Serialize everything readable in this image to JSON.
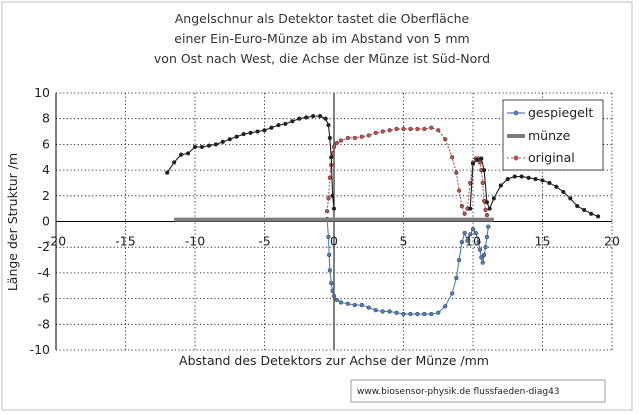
{
  "chart_data": {
    "type": "line",
    "title_lines": [
      "Angelschnur als Detektor tastet die Oberfläche",
      "einer  Ein-Euro-Münze ab im Abstand von 5 mm",
      "von Ost nach West, die Achse der Münze ist Süd-Nord"
    ],
    "xlabel": "Abstand des Detektors zur Achse der Münze /mm",
    "ylabel": "Länge der Struktur /m",
    "xlim": [
      -20,
      20
    ],
    "ylim": [
      -10,
      10
    ],
    "x_ticks": [
      -20,
      -15,
      -10,
      -5,
      0,
      5,
      10,
      15,
      20
    ],
    "y_ticks": [
      10,
      8,
      6,
      4,
      2,
      0,
      -2,
      -4,
      -6,
      -8,
      -10
    ],
    "grid": true,
    "legend_position": "right",
    "source_note": "www.biosensor-physik.de  flussfaeden-diag43",
    "colors": {
      "gespiegelt": "#4f81bd",
      "münze": "#7f7f7f",
      "original": "#c0504d",
      "left_segment": "#1f1f1f",
      "right_tail": "#1f1f1f"
    },
    "series": [
      {
        "name": "gespiegelt",
        "color": "#4f81bd",
        "marker": "circle",
        "points": [
          [
            -0.5,
            0.2
          ],
          [
            -0.4,
            -1.2
          ],
          [
            -0.35,
            -2.6
          ],
          [
            -0.3,
            -3.8
          ],
          [
            -0.2,
            -4.8
          ],
          [
            -0.1,
            -5.4
          ],
          [
            0.0,
            -5.8
          ],
          [
            0.2,
            -6.1
          ],
          [
            0.5,
            -6.3
          ],
          [
            1.0,
            -6.4
          ],
          [
            1.5,
            -6.5
          ],
          [
            2.0,
            -6.5
          ],
          [
            2.5,
            -6.7
          ],
          [
            3.0,
            -6.9
          ],
          [
            3.5,
            -7.0
          ],
          [
            4.0,
            -7.0
          ],
          [
            4.5,
            -7.1
          ],
          [
            5.0,
            -7.2
          ],
          [
            5.5,
            -7.2
          ],
          [
            6.0,
            -7.2
          ],
          [
            6.5,
            -7.2
          ],
          [
            7.0,
            -7.2
          ],
          [
            7.5,
            -7.1
          ],
          [
            8.0,
            -6.6
          ],
          [
            8.5,
            -5.6
          ],
          [
            8.8,
            -4.4
          ],
          [
            9.0,
            -3.0
          ],
          [
            9.2,
            -1.6
          ],
          [
            9.4,
            -0.9
          ],
          [
            9.6,
            -1.5
          ],
          [
            9.8,
            -1.0
          ],
          [
            10.0,
            -0.6
          ],
          [
            10.2,
            -0.9
          ],
          [
            10.4,
            -1.6
          ],
          [
            10.5,
            -2.2
          ],
          [
            10.6,
            -2.8
          ],
          [
            10.7,
            -3.2
          ],
          [
            10.8,
            -2.6
          ],
          [
            10.9,
            -2.0
          ],
          [
            11.0,
            -1.2
          ],
          [
            11.1,
            -0.4
          ]
        ]
      },
      {
        "name": "münze",
        "color": "#7f7f7f",
        "marker": "none",
        "points": [
          [
            -11.5,
            0.15
          ],
          [
            11.5,
            0.15
          ]
        ]
      },
      {
        "name": "original",
        "color": "#c0504d",
        "marker": "circle",
        "points": [
          [
            -0.5,
            0.8
          ],
          [
            -0.4,
            1.8
          ],
          [
            -0.3,
            3.4
          ],
          [
            -0.2,
            4.4
          ],
          [
            -0.1,
            5.3
          ],
          [
            0.0,
            5.8
          ],
          [
            0.2,
            6.1
          ],
          [
            0.5,
            6.3
          ],
          [
            1.0,
            6.5
          ],
          [
            1.5,
            6.5
          ],
          [
            2.0,
            6.6
          ],
          [
            2.5,
            6.7
          ],
          [
            3.0,
            6.9
          ],
          [
            3.5,
            7.0
          ],
          [
            4.0,
            7.1
          ],
          [
            4.5,
            7.2
          ],
          [
            5.0,
            7.2
          ],
          [
            5.5,
            7.2
          ],
          [
            6.0,
            7.2
          ],
          [
            6.5,
            7.2
          ],
          [
            7.0,
            7.3
          ],
          [
            7.5,
            7.1
          ],
          [
            8.0,
            6.4
          ],
          [
            8.5,
            5.0
          ],
          [
            8.8,
            3.8
          ],
          [
            9.0,
            2.4
          ],
          [
            9.2,
            1.2
          ],
          [
            9.4,
            0.6
          ],
          [
            9.6,
            1.0
          ],
          [
            9.8,
            3.0
          ],
          [
            10.0,
            4.6
          ],
          [
            10.2,
            4.9
          ],
          [
            10.4,
            4.9
          ],
          [
            10.5,
            4.6
          ],
          [
            10.6,
            4.0
          ],
          [
            10.7,
            3.0
          ],
          [
            10.8,
            1.6
          ],
          [
            10.9,
            0.9
          ],
          [
            11.0,
            0.5
          ]
        ]
      },
      {
        "name": "",
        "color": "#1f1f1f",
        "marker": "circle",
        "points": [
          [
            -12.0,
            3.8
          ],
          [
            -11.5,
            4.6
          ],
          [
            -11.0,
            5.2
          ],
          [
            -10.5,
            5.3
          ],
          [
            -10.0,
            5.8
          ],
          [
            -9.5,
            5.8
          ],
          [
            -9.0,
            5.9
          ],
          [
            -8.5,
            6.0
          ],
          [
            -8.0,
            6.2
          ],
          [
            -7.5,
            6.4
          ],
          [
            -7.0,
            6.6
          ],
          [
            -6.5,
            6.8
          ],
          [
            -6.0,
            6.9
          ],
          [
            -5.5,
            7.0
          ],
          [
            -5.0,
            7.1
          ],
          [
            -4.5,
            7.3
          ],
          [
            -4.0,
            7.5
          ],
          [
            -3.5,
            7.6
          ],
          [
            -3.0,
            7.8
          ],
          [
            -2.5,
            8.0
          ],
          [
            -2.0,
            8.1
          ],
          [
            -1.5,
            8.2
          ],
          [
            -1.0,
            8.2
          ],
          [
            -0.6,
            8.0
          ],
          [
            -0.4,
            7.5
          ],
          [
            -0.3,
            6.5
          ],
          [
            -0.2,
            5.0
          ],
          [
            -0.1,
            2.0
          ],
          [
            0.0,
            1.0
          ]
        ]
      },
      {
        "name": "",
        "color": "#1f1f1f",
        "marker": "circle",
        "points": [
          [
            9.8,
            1.0
          ],
          [
            10.0,
            4.5
          ],
          [
            10.3,
            4.8
          ],
          [
            10.6,
            4.9
          ],
          [
            10.8,
            4.0
          ],
          [
            11.0,
            1.5
          ],
          [
            11.2,
            1.0
          ],
          [
            11.5,
            1.8
          ],
          [
            12.0,
            2.8
          ],
          [
            12.5,
            3.3
          ],
          [
            13.0,
            3.5
          ],
          [
            13.5,
            3.5
          ],
          [
            14.0,
            3.4
          ],
          [
            14.5,
            3.3
          ],
          [
            15.0,
            3.2
          ],
          [
            15.5,
            3.0
          ],
          [
            16.0,
            2.7
          ],
          [
            16.5,
            2.3
          ],
          [
            17.0,
            1.8
          ],
          [
            17.5,
            1.2
          ],
          [
            18.0,
            0.9
          ],
          [
            18.5,
            0.6
          ],
          [
            19.0,
            0.4
          ]
        ]
      }
    ]
  }
}
